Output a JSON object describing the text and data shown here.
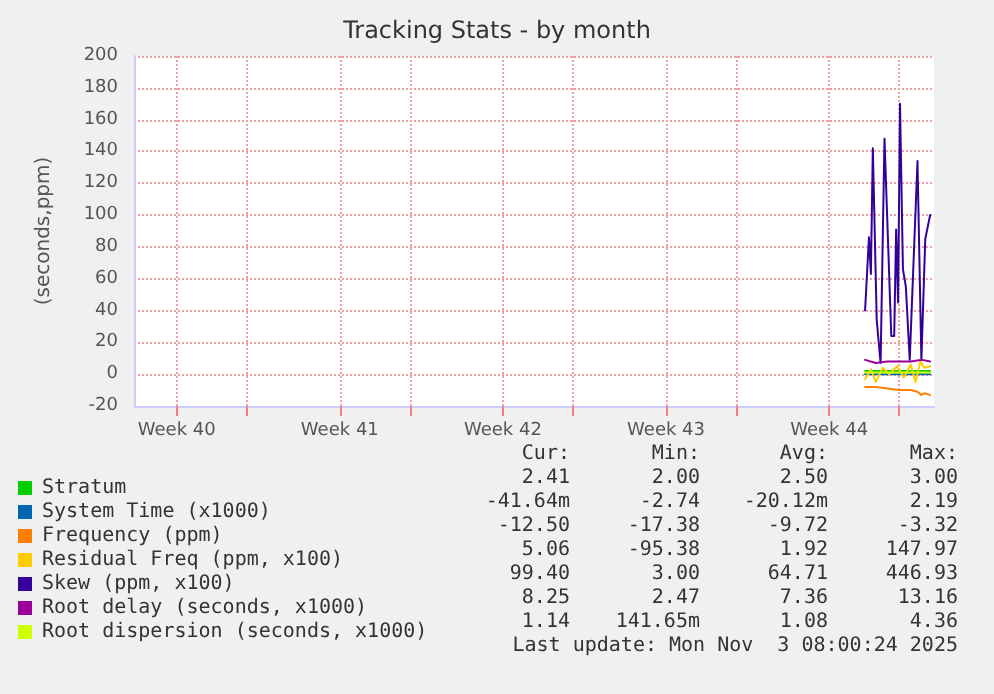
{
  "chart_data": {
    "type": "line",
    "title": "Tracking Stats - by month",
    "ylabel": "(seconds,ppm)",
    "xlim": [
      "2025-09-30T04:00",
      "2025-11-03T12:00"
    ],
    "xticks": [
      {
        "value": "2025-10-02",
        "label": "Week 40"
      },
      {
        "value": "2025-10-05",
        "label": null
      },
      {
        "value": "2025-10-09",
        "label": "Week 41"
      },
      {
        "value": "2025-10-12",
        "label": null
      },
      {
        "value": "2025-10-16",
        "label": "Week 42"
      },
      {
        "value": "2025-10-19",
        "label": null
      },
      {
        "value": "2025-10-23",
        "label": "Week 43"
      },
      {
        "value": "2025-10-26",
        "label": null
      },
      {
        "value": "2025-10-30",
        "label": "Week 44"
      },
      {
        "value": "2025-11-02",
        "label": null
      }
    ],
    "ylim": [
      -20,
      200
    ],
    "yticks": [
      -20,
      0,
      20,
      40,
      60,
      80,
      100,
      120,
      140,
      160,
      180,
      200
    ],
    "grid": true,
    "legend": "bottom",
    "marker": "none",
    "line_style": "solid",
    "series": [
      {
        "name": "Stratum",
        "color": "#00cc00",
        "x": [
          "2025-10-31T13:00",
          "2025-11-01T00:00",
          "2025-11-01T12:00",
          "2025-11-02T00:00",
          "2025-11-02T12:00",
          "2025-11-03T00:00",
          "2025-11-03T08:00"
        ],
        "values": [
          2,
          2,
          2,
          2,
          2,
          2,
          2
        ]
      },
      {
        "name": "System Time (x1000)",
        "color": "#0066b3",
        "x": [
          "2025-10-31T13:00",
          "2025-11-01T00:00",
          "2025-11-01T12:00",
          "2025-11-02T00:00",
          "2025-11-02T12:00",
          "2025-11-03T00:00",
          "2025-11-03T08:00"
        ],
        "values": [
          0,
          0,
          0,
          0,
          0,
          0,
          0
        ]
      },
      {
        "name": "Frequency (ppm)",
        "color": "#ff8000",
        "x": [
          "2025-10-31T13:00",
          "2025-11-01T00:00",
          "2025-11-01T12:00",
          "2025-11-02T00:00",
          "2025-11-02T12:00",
          "2025-11-02T19:00",
          "2025-11-02T23:00",
          "2025-11-03T02:00",
          "2025-11-03T08:00"
        ],
        "values": [
          -8,
          -8,
          -9,
          -10,
          -10,
          -11,
          -13,
          -12,
          -13
        ]
      },
      {
        "name": "Residual Freq (ppm, x100)",
        "color": "#ffcc00",
        "x": [
          "2025-10-31T13:00",
          "2025-10-31T19:00",
          "2025-11-01T00:00",
          "2025-11-01T07:00",
          "2025-11-01T14:00",
          "2025-11-01T22:00",
          "2025-11-02T05:00",
          "2025-11-02T12:00",
          "2025-11-02T17:00",
          "2025-11-02T22:00",
          "2025-11-03T02:00",
          "2025-11-03T08:00"
        ],
        "values": [
          -3,
          3,
          -5,
          4,
          0,
          5,
          -2,
          6,
          -5,
          8,
          4,
          5
        ]
      },
      {
        "name": "Skew (ppm, x100)",
        "color": "#330099",
        "x": [
          "2025-10-31T13:00",
          "2025-10-31T17:00",
          "2025-10-31T19:00",
          "2025-10-31T21:00",
          "2025-11-01T01:00",
          "2025-11-01T05:00",
          "2025-11-01T09:00",
          "2025-11-01T16:00",
          "2025-11-01T19:00",
          "2025-11-01T21:00",
          "2025-11-01T23:00",
          "2025-11-02T01:00",
          "2025-11-02T04:00",
          "2025-11-02T07:00",
          "2025-11-02T11:00",
          "2025-11-02T19:00",
          "2025-11-02T23:00",
          "2025-11-03T03:00",
          "2025-11-03T08:00"
        ],
        "values": [
          40,
          86,
          63,
          142,
          34,
          7,
          148,
          24,
          24,
          91,
          45,
          170,
          66,
          55,
          9,
          134,
          9,
          85,
          100
        ]
      },
      {
        "name": "Root delay (seconds, x1000)",
        "color": "#990099",
        "x": [
          "2025-10-31T13:00",
          "2025-11-01T00:00",
          "2025-11-01T12:00",
          "2025-11-02T00:00",
          "2025-11-02T12:00",
          "2025-11-03T00:00",
          "2025-11-03T08:00"
        ],
        "values": [
          9,
          7,
          8,
          8,
          8,
          9,
          8
        ]
      },
      {
        "name": "Root dispersion (seconds, x1000)",
        "color": "#ccff00",
        "x": [
          "2025-10-31T13:00",
          "2025-11-01T00:00",
          "2025-11-01T12:00",
          "2025-11-02T00:00",
          "2025-11-02T12:00",
          "2025-11-03T00:00",
          "2025-11-03T08:00"
        ],
        "values": [
          1,
          1,
          1,
          1,
          1,
          1,
          1
        ]
      }
    ],
    "annotations": [
      "Cur:",
      "Min:",
      "Avg:",
      "Max:",
      "2.41",
      "2.00",
      "2.50",
      "3.00",
      "-41.64m",
      "-2.74",
      "-20.12m",
      "2.19",
      "-12.50",
      "-17.38",
      "-9.72",
      "-3.32",
      "5.06",
      "-95.38",
      "1.92",
      "147.97",
      "99.40",
      "3.00",
      "64.71",
      "446.93",
      "8.25",
      "2.47",
      "7.36",
      "13.16",
      "1.14",
      "141.65m",
      "1.08",
      "4.36",
      "Last update: Mon Nov  3 08:00:24 2025"
    ]
  }
}
